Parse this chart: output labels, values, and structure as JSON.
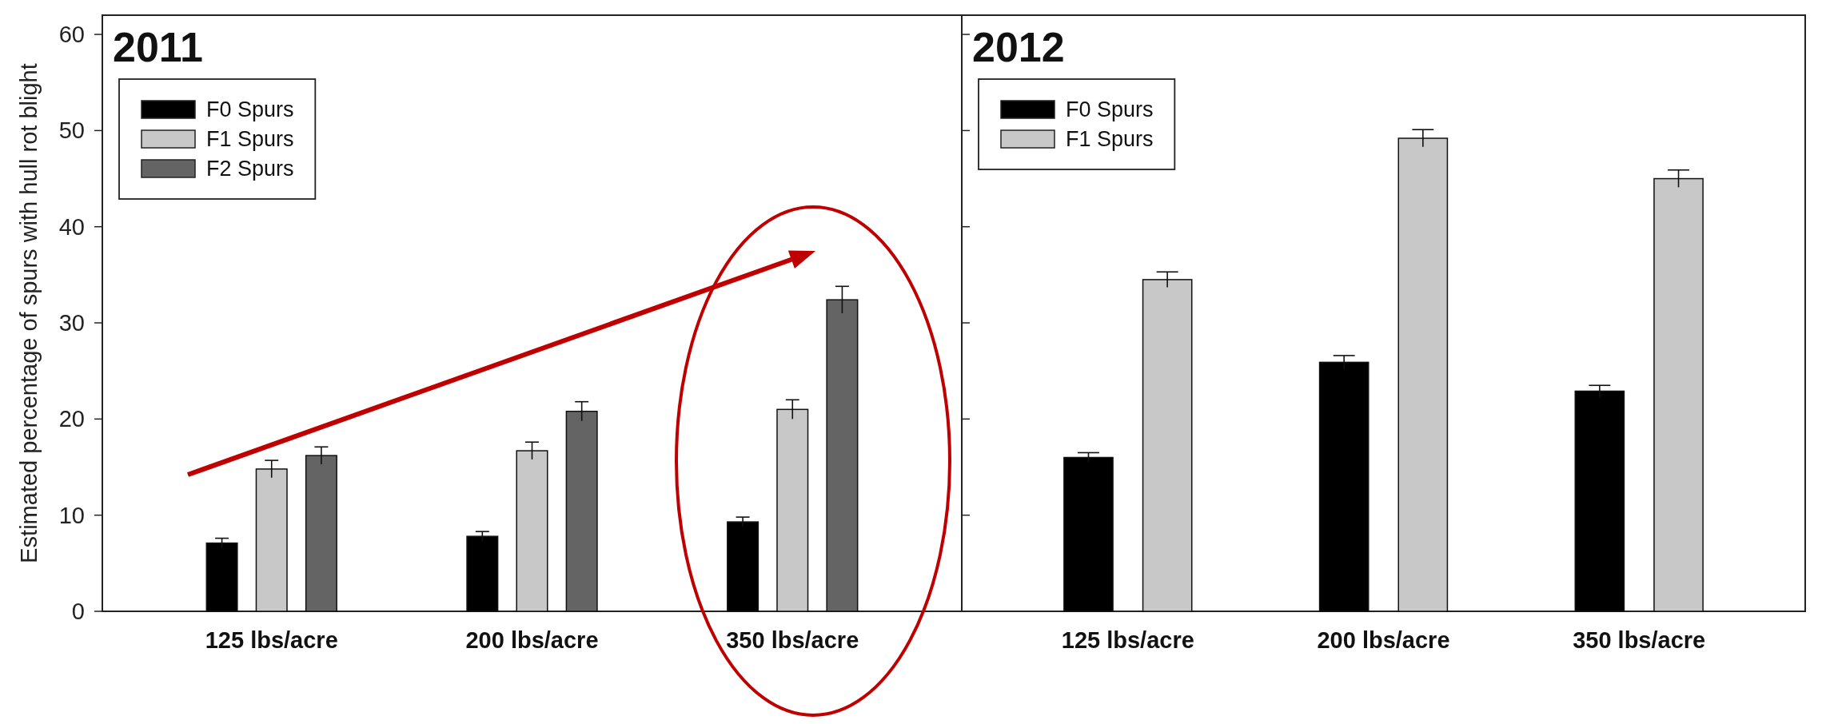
{
  "chart_data": [
    {
      "type": "bar",
      "title": "2011",
      "ylabel": "Estimated percentage of spurs with hull rot blight",
      "categories": [
        "125 lbs/acre",
        "200 lbs/acre",
        "350 lbs/acre"
      ],
      "series": [
        {
          "name": "F0 Spurs",
          "color": "#000000",
          "values": [
            7.1,
            7.8,
            9.3
          ],
          "errors": [
            0.5,
            0.5,
            0.5
          ]
        },
        {
          "name": "F1 Spurs",
          "color": "#c8c8c8",
          "values": [
            14.8,
            16.7,
            21.0
          ],
          "errors": [
            0.9,
            0.9,
            1.0
          ]
        },
        {
          "name": "F2 Spurs",
          "color": "#646464",
          "values": [
            16.2,
            20.8,
            32.4
          ],
          "errors": [
            0.9,
            1.0,
            1.4
          ]
        }
      ],
      "ylim": [
        0,
        62
      ],
      "yticks": [
        0,
        10,
        20,
        30,
        40,
        50,
        60
      ],
      "legend": "top left"
    },
    {
      "type": "bar",
      "title": "2012",
      "categories": [
        "125 lbs/acre",
        "200 lbs/acre",
        "350 lbs/acre"
      ],
      "series": [
        {
          "name": "F0 Spurs",
          "color": "#000000",
          "values": [
            16.0,
            25.9,
            22.9
          ],
          "errors": [
            0.5,
            0.7,
            0.6
          ]
        },
        {
          "name": "F1 Spurs",
          "color": "#c8c8c8",
          "values": [
            34.5,
            49.2,
            45.0
          ],
          "errors": [
            0.8,
            0.9,
            0.9
          ]
        }
      ],
      "ylim": [
        0,
        62
      ],
      "yticks": [
        0,
        10,
        20,
        30,
        40,
        50,
        60
      ],
      "legend": "top left",
      "tick_labels": "x"
    }
  ]
}
